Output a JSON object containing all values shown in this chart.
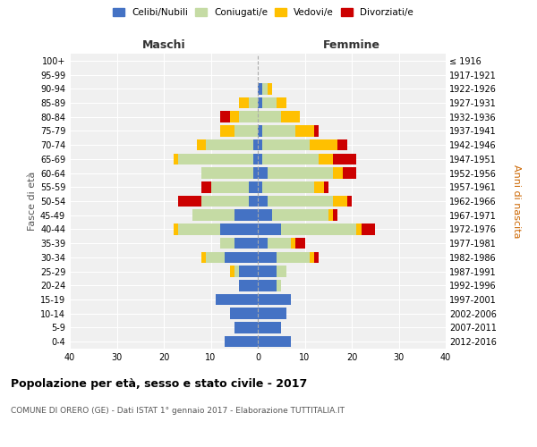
{
  "age_groups": [
    "0-4",
    "5-9",
    "10-14",
    "15-19",
    "20-24",
    "25-29",
    "30-34",
    "35-39",
    "40-44",
    "45-49",
    "50-54",
    "55-59",
    "60-64",
    "65-69",
    "70-74",
    "75-79",
    "80-84",
    "85-89",
    "90-94",
    "95-99",
    "100+"
  ],
  "birth_years": [
    "2012-2016",
    "2007-2011",
    "2002-2006",
    "1997-2001",
    "1992-1996",
    "1987-1991",
    "1982-1986",
    "1977-1981",
    "1972-1976",
    "1967-1971",
    "1962-1966",
    "1957-1961",
    "1952-1956",
    "1947-1951",
    "1942-1946",
    "1937-1941",
    "1932-1936",
    "1927-1931",
    "1922-1926",
    "1917-1921",
    "≤ 1916"
  ],
  "maschi": {
    "celibi": [
      7,
      5,
      6,
      9,
      4,
      4,
      7,
      5,
      8,
      5,
      2,
      2,
      1,
      1,
      1,
      0,
      0,
      0,
      0,
      0,
      0
    ],
    "coniugati": [
      0,
      0,
      0,
      0,
      0,
      1,
      4,
      3,
      9,
      9,
      10,
      8,
      11,
      16,
      10,
      5,
      4,
      2,
      0,
      0,
      0
    ],
    "vedovi": [
      0,
      0,
      0,
      0,
      0,
      1,
      1,
      0,
      1,
      0,
      0,
      0,
      0,
      1,
      2,
      3,
      2,
      2,
      0,
      0,
      0
    ],
    "divorziati": [
      0,
      0,
      0,
      0,
      0,
      0,
      0,
      0,
      0,
      0,
      5,
      2,
      0,
      0,
      0,
      0,
      2,
      0,
      0,
      0,
      0
    ]
  },
  "femmine": {
    "nubili": [
      7,
      5,
      6,
      7,
      4,
      4,
      4,
      2,
      5,
      3,
      2,
      1,
      2,
      1,
      1,
      1,
      0,
      1,
      1,
      0,
      0
    ],
    "coniugate": [
      0,
      0,
      0,
      0,
      1,
      2,
      7,
      5,
      16,
      12,
      14,
      11,
      14,
      12,
      10,
      7,
      5,
      3,
      1,
      0,
      0
    ],
    "vedove": [
      0,
      0,
      0,
      0,
      0,
      0,
      1,
      1,
      1,
      1,
      3,
      2,
      2,
      3,
      6,
      4,
      4,
      2,
      1,
      0,
      0
    ],
    "divorziate": [
      0,
      0,
      0,
      0,
      0,
      0,
      1,
      2,
      3,
      1,
      1,
      1,
      3,
      5,
      2,
      1,
      0,
      0,
      0,
      0,
      0
    ]
  },
  "colors": {
    "celibi_nubili": "#4472c4",
    "coniugati": "#c5dba4",
    "vedovi": "#ffc000",
    "divorziati": "#cc0000"
  },
  "xlim": 40,
  "title": "Popolazione per età, sesso e stato civile - 2017",
  "subtitle": "COMUNE DI ORERO (GE) - Dati ISTAT 1° gennaio 2017 - Elaborazione TUTTITALIA.IT",
  "ylabel_left": "Fasce di età",
  "ylabel_right": "Anni di nascita",
  "xlabel_left": "Maschi",
  "xlabel_right": "Femmine",
  "bg_color": "#f0f0f0",
  "grid_color": "#ffffff"
}
